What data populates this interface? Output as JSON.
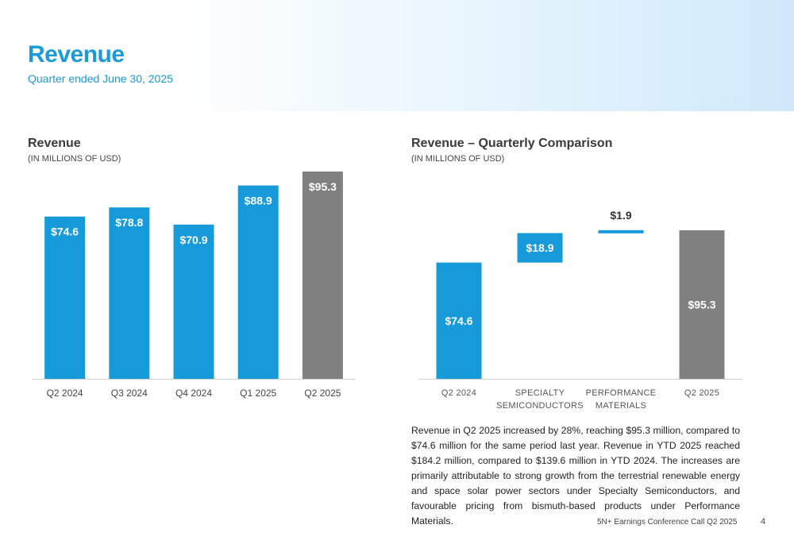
{
  "header": {
    "title": "Revenue",
    "subtitle": "Quarter ended June 30, 2025"
  },
  "colors": {
    "accent": "#1b9ad8",
    "bar_blue": "#169ada",
    "bar_gray": "#808080"
  },
  "chart_data": [
    {
      "type": "bar",
      "title": "Revenue",
      "unit_label": "(IN MILLIONS OF USD)",
      "categories": [
        "Q2 2024",
        "Q3 2024",
        "Q4 2024",
        "Q1 2025",
        "Q2 2025"
      ],
      "values": [
        74.6,
        78.8,
        70.9,
        88.9,
        95.3
      ],
      "data_labels": [
        "$74.6",
        "$78.8",
        "$70.9",
        "$88.9",
        "$95.3"
      ],
      "bar_colors": [
        "#169ada",
        "#169ada",
        "#169ada",
        "#169ada",
        "#808080"
      ],
      "ylim": [
        0,
        95.3
      ],
      "grid": false
    },
    {
      "type": "bar",
      "subtype": "waterfall",
      "title": "Revenue – Quarterly Comparison",
      "unit_label": "(IN MILLIONS OF USD)",
      "categories": [
        [
          "Q2 2024"
        ],
        [
          "SPECIALTY",
          "SEMICONDUCTORS"
        ],
        [
          "PERFORMANCE",
          "MATERIALS"
        ],
        [
          "Q2 2025"
        ]
      ],
      "steps": [
        {
          "kind": "total",
          "value": 74.6,
          "label": "$74.6",
          "color": "#169ada"
        },
        {
          "kind": "increase",
          "value": 18.9,
          "label": "$18.9",
          "color": "#169ada"
        },
        {
          "kind": "increase",
          "value": 1.9,
          "label": "$1.9",
          "color": "#169ada"
        },
        {
          "kind": "total",
          "value": 95.3,
          "label": "$95.3",
          "color": "#808080"
        }
      ],
      "ylim": [
        0,
        95.3
      ],
      "grid": false
    }
  ],
  "commentary": "Revenue in Q2 2025 increased by 28%, reaching $95.3 million, compared to $74.6 million for the same period last year. Revenue in YTD 2025 reached $184.2 million, compared to $139.6 million in YTD 2024. The increases are primarily attributable to strong growth from the terrestrial renewable energy and space solar power sectors under Specialty Semiconductors, and favourable pricing from bismuth-based products under Performance Materials.",
  "footer": {
    "text": "5N+ Earnings Conference Call Q2 2025",
    "page_number": "4"
  }
}
